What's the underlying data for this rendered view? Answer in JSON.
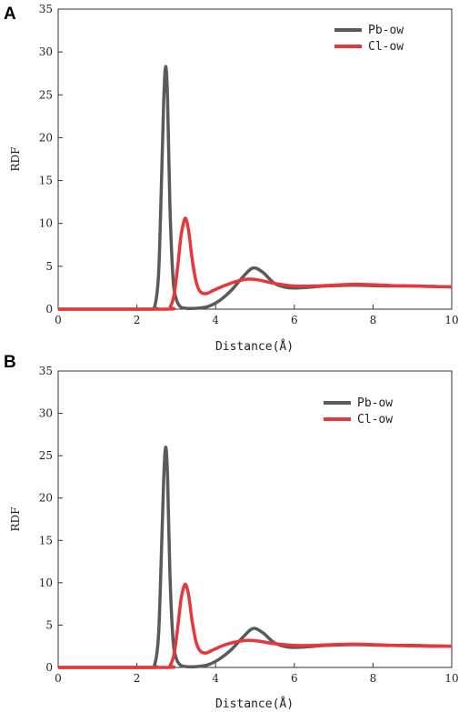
{
  "chart_data": [
    {
      "panel": "A",
      "type": "line",
      "xlabel": "Distance(Å)",
      "ylabel": "RDF",
      "xlim": [
        0,
        10
      ],
      "ylim": [
        0,
        35
      ],
      "xticks": [
        0,
        2,
        4,
        6,
        8,
        10
      ],
      "yticks": [
        0,
        5,
        10,
        15,
        20,
        25,
        30,
        35
      ],
      "grid": false,
      "legend_position": "top-right",
      "series": [
        {
          "name": "Pb-ow",
          "color": "#5a5a5a",
          "x": [
            0,
            2.3,
            2.45,
            2.55,
            2.62,
            2.68,
            2.73,
            2.78,
            2.84,
            2.92,
            3.0,
            3.1,
            3.25,
            3.5,
            3.8,
            4.1,
            4.4,
            4.7,
            4.95,
            5.2,
            5.5,
            5.85,
            6.2,
            6.8,
            7.5,
            8.0,
            8.5,
            9.0,
            9.5,
            10.0
          ],
          "y": [
            0,
            0,
            0.3,
            4.0,
            14.0,
            24.0,
            28.3,
            24.5,
            12.0,
            3.5,
            1.2,
            0.3,
            0.1,
            0.1,
            0.3,
            1.0,
            2.2,
            3.8,
            4.8,
            4.3,
            3.0,
            2.5,
            2.5,
            2.7,
            2.8,
            2.75,
            2.7,
            2.7,
            2.65,
            2.6
          ]
        },
        {
          "name": "Cl-ow",
          "color": "#e8373a",
          "x": [
            0,
            2.7,
            2.85,
            2.95,
            3.05,
            3.12,
            3.2,
            3.25,
            3.32,
            3.4,
            3.5,
            3.6,
            3.75,
            3.95,
            4.2,
            4.5,
            4.8,
            5.1,
            5.5,
            6.0,
            6.5,
            7.0,
            7.5,
            8.0,
            8.5,
            9.0,
            9.5,
            10.0
          ],
          "y": [
            0,
            0,
            0.3,
            1.8,
            5.5,
            8.5,
            10.3,
            10.5,
            9.0,
            6.0,
            3.3,
            2.1,
            1.8,
            2.2,
            2.7,
            3.2,
            3.5,
            3.4,
            3.0,
            2.7,
            2.7,
            2.8,
            2.9,
            2.85,
            2.75,
            2.7,
            2.65,
            2.6
          ]
        }
      ]
    },
    {
      "panel": "B",
      "type": "line",
      "xlabel": "Distance(Å)",
      "ylabel": "RDF",
      "xlim": [
        0,
        10
      ],
      "ylim": [
        0,
        35
      ],
      "xticks": [
        0,
        2,
        4,
        6,
        8,
        10
      ],
      "yticks": [
        0,
        5,
        10,
        15,
        20,
        25,
        30,
        35
      ],
      "grid": false,
      "legend_position": "top-right",
      "series": [
        {
          "name": "Pb-ow",
          "color": "#5a5a5a",
          "x": [
            0,
            2.3,
            2.45,
            2.55,
            2.62,
            2.68,
            2.73,
            2.78,
            2.84,
            2.92,
            3.0,
            3.1,
            3.25,
            3.5,
            3.8,
            4.1,
            4.4,
            4.7,
            4.95,
            5.2,
            5.5,
            5.85,
            6.2,
            6.8,
            7.5,
            8.0,
            8.5,
            9.0,
            9.5,
            10.0
          ],
          "y": [
            0,
            0,
            0.3,
            3.8,
            13.0,
            22.0,
            26.0,
            22.5,
            11.0,
            3.2,
            1.1,
            0.3,
            0.1,
            0.1,
            0.3,
            1.0,
            2.1,
            3.6,
            4.6,
            4.1,
            2.9,
            2.4,
            2.4,
            2.6,
            2.7,
            2.65,
            2.6,
            2.6,
            2.55,
            2.5
          ]
        },
        {
          "name": "Cl-ow",
          "color": "#e8373a",
          "x": [
            0,
            2.7,
            2.85,
            2.95,
            3.05,
            3.12,
            3.2,
            3.25,
            3.32,
            3.4,
            3.5,
            3.6,
            3.75,
            3.95,
            4.2,
            4.5,
            4.8,
            5.1,
            5.5,
            6.0,
            6.5,
            7.0,
            7.5,
            8.0,
            8.5,
            9.0,
            9.5,
            10.0
          ],
          "y": [
            0,
            0,
            0.3,
            1.7,
            5.2,
            8.0,
            9.6,
            9.7,
            8.4,
            5.6,
            3.1,
            2.0,
            1.7,
            2.1,
            2.6,
            3.0,
            3.2,
            3.1,
            2.8,
            2.6,
            2.6,
            2.7,
            2.75,
            2.7,
            2.6,
            2.55,
            2.5,
            2.5
          ]
        }
      ]
    }
  ]
}
